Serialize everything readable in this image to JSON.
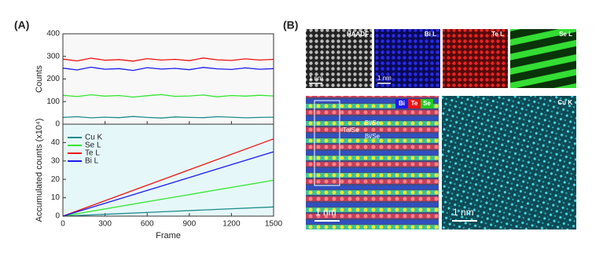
{
  "panel_a": {
    "label": "(A)"
  },
  "chart_data": [
    {
      "type": "line",
      "ylabel": "Counts",
      "x": [
        0,
        100,
        200,
        300,
        400,
        500,
        600,
        700,
        800,
        900,
        1000,
        1100,
        1200,
        1300,
        1400,
        1500
      ],
      "xlim": [
        0,
        1500
      ],
      "xticks": [
        0,
        300,
        600,
        900,
        1200,
        1500
      ],
      "ylim": [
        0,
        400
      ],
      "yticks": [
        0,
        100,
        200,
        300,
        400
      ],
      "series": [
        {
          "name": "Cu K",
          "color": "#1f8c8c",
          "values": [
            30,
            33,
            28,
            31,
            29,
            34,
            30,
            27,
            32,
            30,
            29,
            33,
            31,
            28,
            30,
            31
          ]
        },
        {
          "name": "Se L",
          "color": "#33e633",
          "values": [
            128,
            122,
            130,
            124,
            127,
            120,
            126,
            131,
            123,
            125,
            129,
            121,
            127,
            124,
            128,
            125
          ]
        },
        {
          "name": "Te L",
          "color": "#ee1111",
          "values": [
            288,
            280,
            292,
            283,
            286,
            279,
            290,
            284,
            287,
            281,
            293,
            285,
            282,
            289,
            284,
            287
          ]
        },
        {
          "name": "Bi L",
          "color": "#1a1aee",
          "values": [
            248,
            240,
            252,
            243,
            246,
            238,
            250,
            244,
            247,
            241,
            251,
            245,
            242,
            249,
            243,
            246
          ]
        }
      ]
    },
    {
      "type": "line",
      "ylabel": "Accumulated counts (x10⁴)",
      "xlabel": "Frame",
      "x": [
        0,
        750,
        1500
      ],
      "xlim": [
        0,
        1500
      ],
      "xticks": [
        0,
        300,
        600,
        900,
        1200,
        1500
      ],
      "ylim": [
        0,
        50
      ],
      "yticks": [
        0,
        10,
        20,
        30,
        40
      ],
      "series": [
        {
          "name": "Cu K",
          "color": "#1f8c8c",
          "values": [
            0,
            2.5,
            5
          ]
        },
        {
          "name": "Se L",
          "color": "#33e633",
          "values": [
            0,
            9.8,
            19.5
          ]
        },
        {
          "name": "Te L",
          "color": "#ee1111",
          "values": [
            0,
            21,
            42
          ]
        },
        {
          "name": "Bi L",
          "color": "#1a1aee",
          "values": [
            0,
            17.5,
            35
          ]
        }
      ]
    }
  ],
  "panel_b": {
    "label": "(B)",
    "maps": [
      "HAADF",
      "Bi L",
      "Te L",
      "Se L"
    ],
    "scale_bar": "1 nm",
    "overlay_legend": [
      "Bi",
      "Te",
      "Se"
    ],
    "sites": [
      "Bi/Se",
      "Te/Se",
      "Bi/Se"
    ],
    "cu_map": "Cu K"
  }
}
